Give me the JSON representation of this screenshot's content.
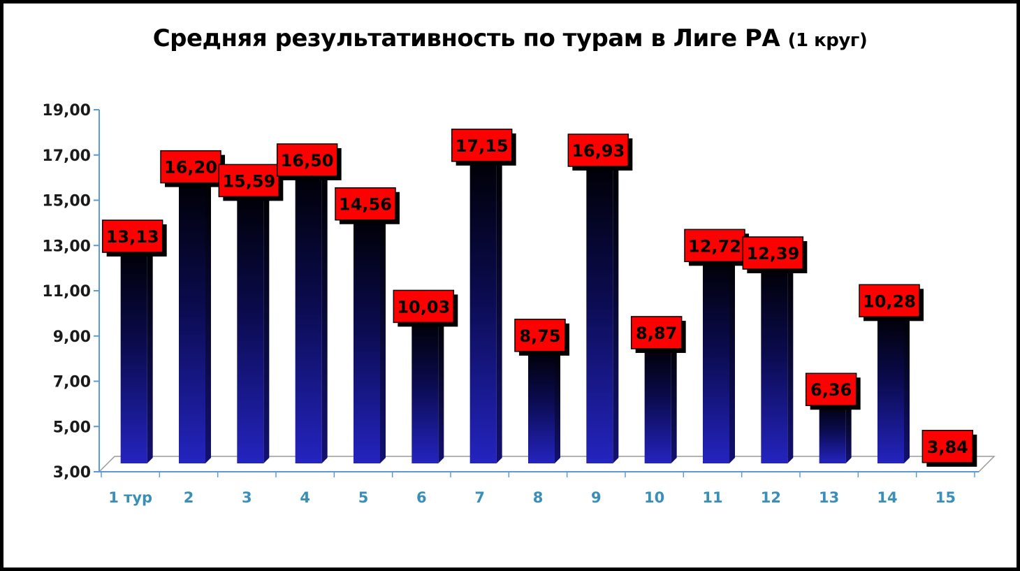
{
  "chart_data": {
    "type": "bar",
    "title_main": "Средняя результативность по турам в Лиге РА",
    "title_suffix": "(1 круг)",
    "categories": [
      "1 тур",
      "2",
      "3",
      "4",
      "5",
      "6",
      "7",
      "8",
      "9",
      "10",
      "11",
      "12",
      "13",
      "14",
      "15"
    ],
    "values": [
      13.13,
      16.2,
      15.59,
      16.5,
      14.56,
      10.03,
      17.15,
      8.75,
      16.93,
      8.87,
      12.72,
      12.39,
      6.36,
      10.28,
      3.84
    ],
    "value_labels": [
      "13,13",
      "16,20",
      "15,59",
      "16,50",
      "14,56",
      "10,03",
      "17,15",
      "8,75",
      "16,93",
      "8,87",
      "12,72",
      "12,39",
      "6,36",
      "10,28",
      "3,84"
    ],
    "ylim": [
      3,
      19
    ],
    "yticks": [
      3,
      5,
      7,
      9,
      11,
      13,
      15,
      17,
      19
    ],
    "ytick_labels": [
      "3,00",
      "5,00",
      "7,00",
      "9,00",
      "11,00",
      "13,00",
      "15,00",
      "17,00",
      "19,00"
    ],
    "xlabel": "",
    "ylabel": "",
    "grid": false,
    "legend": "none",
    "colors": {
      "bar_top": "#000008",
      "bar_bottom": "#2020b8",
      "label_fill": "#ff0000",
      "axis": "#5b9bd5",
      "xtick_text": "#3a8fb8"
    }
  }
}
